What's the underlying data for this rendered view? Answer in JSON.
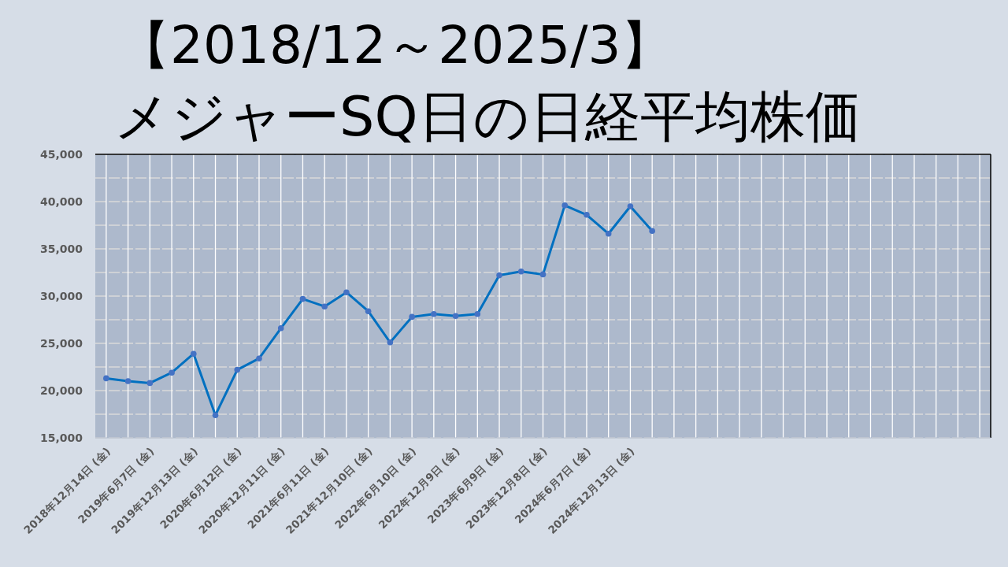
{
  "chart_data": {
    "type": "line",
    "title": "【2018/12～2025/3】",
    "subtitle": "メジャーSQ日の日経平均株価",
    "categories": [
      "2018年12月14日 (金)",
      null,
      "2019年6月7日 (金)",
      null,
      "2019年12月13日 (金)",
      null,
      "2020年6月12日 (金)",
      null,
      "2020年12月11日 (金)",
      null,
      "2021年6月11日 (金)",
      null,
      "2021年12月10日 (金)",
      null,
      "2022年6月10日 (金)",
      null,
      "2022年12月9日 (金)",
      null,
      "2023年6月9日 (金)",
      null,
      "2023年12月8日 (金)",
      null,
      "2024年6月7日 (金)",
      null,
      "2024年12月13日 (金)",
      null,
      null,
      null,
      null,
      null,
      null,
      null,
      null,
      null,
      null,
      null,
      null,
      null,
      null,
      null,
      null
    ],
    "series": [
      {
        "color": "#0070c0",
        "values": [
          21300,
          21000,
          20800,
          21900,
          23900,
          17400,
          22200,
          23400,
          26600,
          29700,
          28900,
          30400,
          28400,
          25100,
          27800,
          28100,
          27900,
          28100,
          32200,
          32600,
          32300,
          39600,
          38600,
          36600,
          39500,
          36900,
          null,
          null,
          null,
          null,
          null,
          null,
          null,
          null,
          null,
          null,
          null,
          null,
          null,
          null,
          null
        ]
      }
    ],
    "ylim": [
      15000,
      45000
    ],
    "yticks": [
      {
        "value": 15000,
        "label": "15,000"
      },
      {
        "value": 17500,
        "label": null
      },
      {
        "value": 20000,
        "label": "20,000"
      },
      {
        "value": 22500,
        "label": null
      },
      {
        "value": 25000,
        "label": "25,000"
      },
      {
        "value": 27500,
        "label": null
      },
      {
        "value": 30000,
        "label": "30,000"
      },
      {
        "value": 32500,
        "label": null
      },
      {
        "value": 35000,
        "label": "35,000"
      },
      {
        "value": 37500,
        "label": null
      },
      {
        "value": 40000,
        "label": "40,000"
      },
      {
        "value": 42500,
        "label": null
      },
      {
        "value": 45000,
        "label": "45,000"
      }
    ],
    "grid": true,
    "marker": "circle",
    "line_style": "solid"
  }
}
